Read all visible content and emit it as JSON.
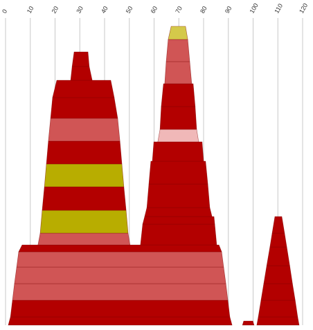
{
  "chart_data": {
    "type": "trapezoid",
    "xlim": [
      0,
      120
    ],
    "xticks": [
      0,
      10,
      20,
      30,
      40,
      50,
      60,
      70,
      80,
      90,
      100,
      110,
      120
    ],
    "grid": true,
    "bands": [
      {
        "color": "#b30000",
        "bottom": [
          1.1,
          91.5
        ],
        "top": [
          2.0,
          90.6
        ]
      },
      {
        "color": "#b30000",
        "bottom": [
          2.0,
          90.6
        ],
        "top": [
          2.8,
          89.8
        ]
      },
      {
        "color": "#d05555",
        "bottom": [
          2.8,
          89.8
        ],
        "top": [
          3.6,
          89.0
        ]
      },
      {
        "color": "#d05555",
        "bottom": [
          3.6,
          89.0
        ],
        "top": [
          4.5,
          88.1
        ]
      },
      {
        "color": "#d05555",
        "bottom": [
          4.5,
          88.1
        ],
        "top": [
          5.3,
          87.3
        ]
      },
      {
        "color": "#b30000",
        "bottom": [
          5.3,
          87.3
        ],
        "top": [
          6.7,
          86.2
        ]
      },
      {
        "color": "#d05555",
        "bottom": [
          13.1,
          50.3
        ],
        "top": [
          14.0,
          49.5
        ]
      },
      {
        "color": "#b8ad00",
        "bottom": [
          14.0,
          49.5
        ],
        "top": [
          14.8,
          48.7
        ]
      },
      {
        "color": "#b30000",
        "bottom": [
          14.8,
          48.7
        ],
        "top": [
          15.7,
          47.8
        ]
      },
      {
        "color": "#b8ad00",
        "bottom": [
          15.7,
          47.8
        ],
        "top": [
          16.5,
          47.0
        ]
      },
      {
        "color": "#b30000",
        "bottom": [
          16.5,
          47.0
        ],
        "top": [
          17.3,
          46.2
        ]
      },
      {
        "color": "#d05555",
        "bottom": [
          17.3,
          46.2
        ],
        "top": [
          18.2,
          45.3
        ]
      },
      {
        "color": "#b30000",
        "bottom": [
          18.2,
          45.3
        ],
        "top": [
          19.0,
          43.9
        ]
      },
      {
        "color": "#b30000",
        "bottom": [
          19.0,
          43.9
        ],
        "top": [
          20.7,
          42.5
        ]
      },
      {
        "color": "#b30000",
        "bottom": [
          26.3,
          35.0
        ],
        "top": [
          26.9,
          33.8
        ]
      },
      {
        "color": "#b30000",
        "bottom": [
          26.9,
          33.8
        ],
        "top": [
          27.7,
          33.3
        ]
      },
      {
        "color": "#b30000",
        "bottom": [
          54.5,
          85.3
        ],
        "top": [
          55.4,
          84.5
        ]
      },
      {
        "color": "#b30000",
        "bottom": [
          55.4,
          84.5
        ],
        "top": [
          56.2,
          84.2
        ]
      },
      {
        "color": "#b30000",
        "bottom": [
          56.2,
          83.4
        ],
        "top": [
          57.1,
          82.5
        ]
      },
      {
        "color": "#b30000",
        "bottom": [
          57.1,
          82.5
        ],
        "top": [
          57.9,
          81.7
        ]
      },
      {
        "color": "#b30000",
        "bottom": [
          57.9,
          81.7
        ],
        "top": [
          58.7,
          80.8
        ]
      },
      {
        "color": "#b30000",
        "bottom": [
          59.3,
          80.0
        ],
        "top": [
          59.9,
          79.4
        ]
      },
      {
        "color": "#f0b8b8",
        "bottom": [
          61.5,
          78.0
        ],
        "top": [
          62.4,
          77.2
        ]
      },
      {
        "color": "#b30000",
        "bottom": [
          62.4,
          77.2
        ],
        "top": [
          62.9,
          76.6
        ]
      },
      {
        "color": "#b30000",
        "bottom": [
          62.9,
          76.6
        ],
        "top": [
          63.8,
          75.8
        ]
      },
      {
        "color": "#d05555",
        "bottom": [
          64.3,
          75.2
        ],
        "top": [
          64.9,
          74.4
        ]
      },
      {
        "color": "#d05555",
        "bottom": [
          64.9,
          74.4
        ],
        "top": [
          65.7,
          73.6
        ]
      },
      {
        "color": "#d4c94a",
        "bottom": [
          65.7,
          73.6
        ],
        "top": [
          66.9,
          72.7
        ]
      },
      {
        "color": "#b30000",
        "bottom": [
          101.5,
          118.6
        ],
        "top": [
          102.1,
          118.0
        ]
      },
      {
        "color": "#b30000",
        "bottom": [
          102.1,
          118.0
        ],
        "top": [
          103.2,
          117.0
        ]
      },
      {
        "color": "#b30000",
        "bottom": [
          103.2,
          117.0
        ],
        "top": [
          104.3,
          115.9
        ]
      },
      {
        "color": "#b30000",
        "bottom": [
          104.3,
          115.9
        ],
        "top": [
          105.5,
          114.8
        ]
      },
      {
        "color": "#b30000",
        "bottom": [
          105.5,
          114.8
        ],
        "top": [
          106.8,
          113.6
        ]
      },
      {
        "color": "#b30000",
        "bottom": [
          106.8,
          113.6
        ],
        "top": [
          107.7,
          112.7
        ]
      },
      {
        "color": "#b30000",
        "bottom": [
          107.7,
          112.7
        ],
        "top": [
          108.8,
          111.6
        ]
      },
      {
        "color": "#b30000",
        "bottom": [
          95.7,
          100.4
        ],
        "top": [
          96.2,
          99.9
        ]
      }
    ]
  }
}
